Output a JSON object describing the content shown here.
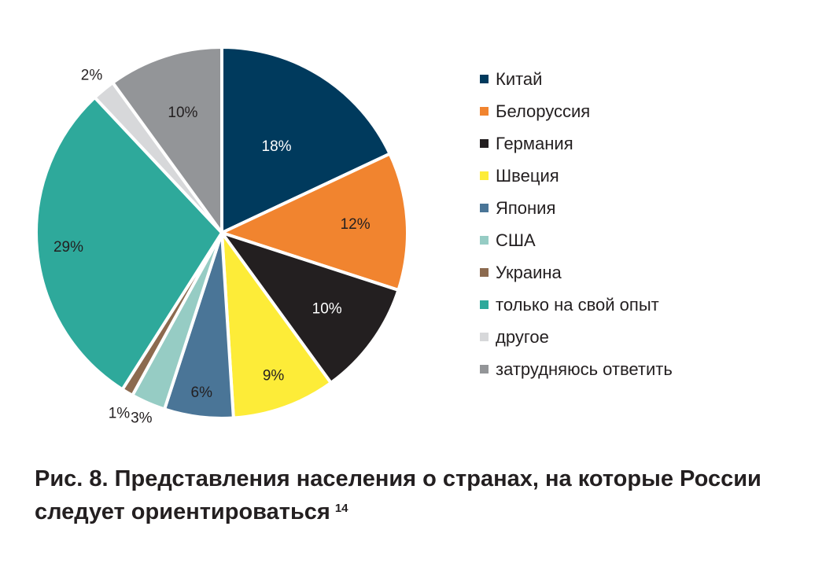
{
  "chart_data": {
    "type": "pie",
    "categories": [
      "Китай",
      "Белоруссия",
      "Германия",
      "Швеция",
      "Япония",
      "США",
      "Украина",
      "только на свой опыт",
      "другое",
      "затрудняюсь ответить"
    ],
    "values": [
      18,
      12,
      10,
      9,
      6,
      3,
      1,
      29,
      2,
      10
    ],
    "labels": [
      "18%",
      "12%",
      "10%",
      "9%",
      "6%",
      "3%",
      "1%",
      "29%",
      "2%",
      "10%"
    ],
    "colors": [
      "#003a5d",
      "#f1842f",
      "#231f20",
      "#fdec38",
      "#4a7597",
      "#96ccc4",
      "#8c6a4f",
      "#2ea99b",
      "#d7d8da",
      "#939598"
    ],
    "label_colors": [
      "#ffffff",
      "#231f20",
      "#ffffff",
      "#231f20",
      "#231f20",
      "#231f20",
      "#231f20",
      "#231f20",
      "#231f20",
      "#231f20"
    ],
    "start_angle_deg": 0,
    "direction": "clockwise",
    "legend_placement": "right"
  },
  "legend": {
    "items": [
      {
        "label": "Китай",
        "color": "#003a5d"
      },
      {
        "label": "Белоруссия",
        "color": "#f1842f"
      },
      {
        "label": "Германия",
        "color": "#231f20"
      },
      {
        "label": "Швеция",
        "color": "#fdec38"
      },
      {
        "label": "Япония",
        "color": "#4a7597"
      },
      {
        "label": "США",
        "color": "#96ccc4"
      },
      {
        "label": "Украина",
        "color": "#8c6a4f"
      },
      {
        "label": "только на свой опыт",
        "color": "#2ea99b"
      },
      {
        "label": "другое",
        "color": "#d7d8da"
      },
      {
        "label": "затрудняюсь ответить",
        "color": "#939598"
      }
    ]
  },
  "caption": {
    "line1": "Рис. 8. Представления населения о странах, на которые России",
    "line2": "следует ориентироваться",
    "footnote": "14"
  }
}
